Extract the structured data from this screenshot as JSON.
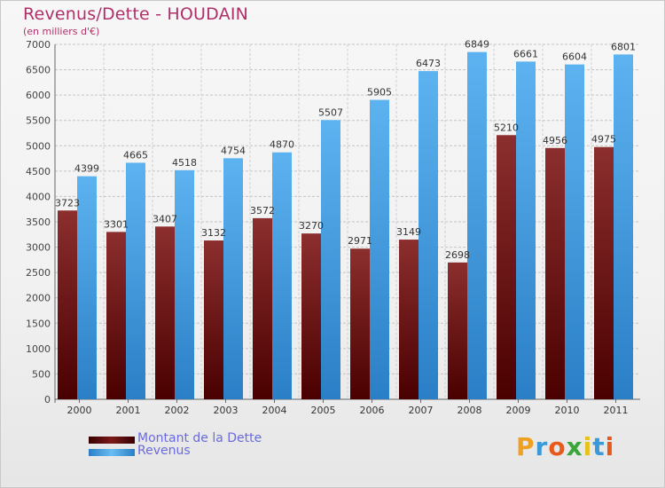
{
  "header": {
    "title": "Revenus/Dette - HOUDAIN",
    "subtitle": "(en milliers d'€)"
  },
  "legend": {
    "items": [
      {
        "label": "Montant de la Dette",
        "color": "#5c0b0b"
      },
      {
        "label": "Revenus",
        "color": "#4aa6ea"
      }
    ]
  },
  "logo": {
    "letters": [
      "P",
      "r",
      "o",
      "x",
      "i",
      "t",
      "i"
    ],
    "colors": [
      "#f0a020",
      "#3a9ad9",
      "#e85a1c",
      "#3aa63a",
      "#e8c21c",
      "#3a9ad9",
      "#e85a1c"
    ]
  },
  "chart_data": {
    "type": "bar",
    "title": "Revenus/Dette - HOUDAIN",
    "subtitle": "(en milliers d'€)",
    "categories": [
      "2000",
      "2001",
      "2002",
      "2003",
      "2004",
      "2005",
      "2006",
      "2007",
      "2008",
      "2009",
      "2010",
      "2011"
    ],
    "series": [
      {
        "name": "Montant de la Dette",
        "color": "#5c0b0b",
        "values": [
          3723,
          3301,
          3407,
          3132,
          3572,
          3270,
          2971,
          3149,
          2698,
          5210,
          4956,
          4975
        ],
        "labels": [
          "3723",
          "3301",
          "3407",
          "3132",
          "3572",
          "3270",
          "2971",
          "3149",
          "2698",
          "5210",
          "4956",
          "4975"
        ]
      },
      {
        "name": "Revenus",
        "color": "#4aa6ea",
        "values": [
          4399,
          4665,
          4518,
          4754,
          4870,
          5507,
          5905,
          6473,
          6849,
          6661,
          6604,
          6801
        ],
        "labels": [
          "4399",
          "4665",
          "4518",
          "4754",
          "4870",
          "5507",
          "5905",
          "6473",
          "6849",
          "6661",
          "6604",
          "6801"
        ]
      }
    ],
    "ylim": [
      0,
      7000
    ],
    "yticks": [
      0,
      500,
      1000,
      1500,
      2000,
      2500,
      3000,
      3500,
      4000,
      4500,
      5000,
      5500,
      6000,
      6500,
      7000
    ],
    "grid": true,
    "legend_position": "bottom-left"
  }
}
